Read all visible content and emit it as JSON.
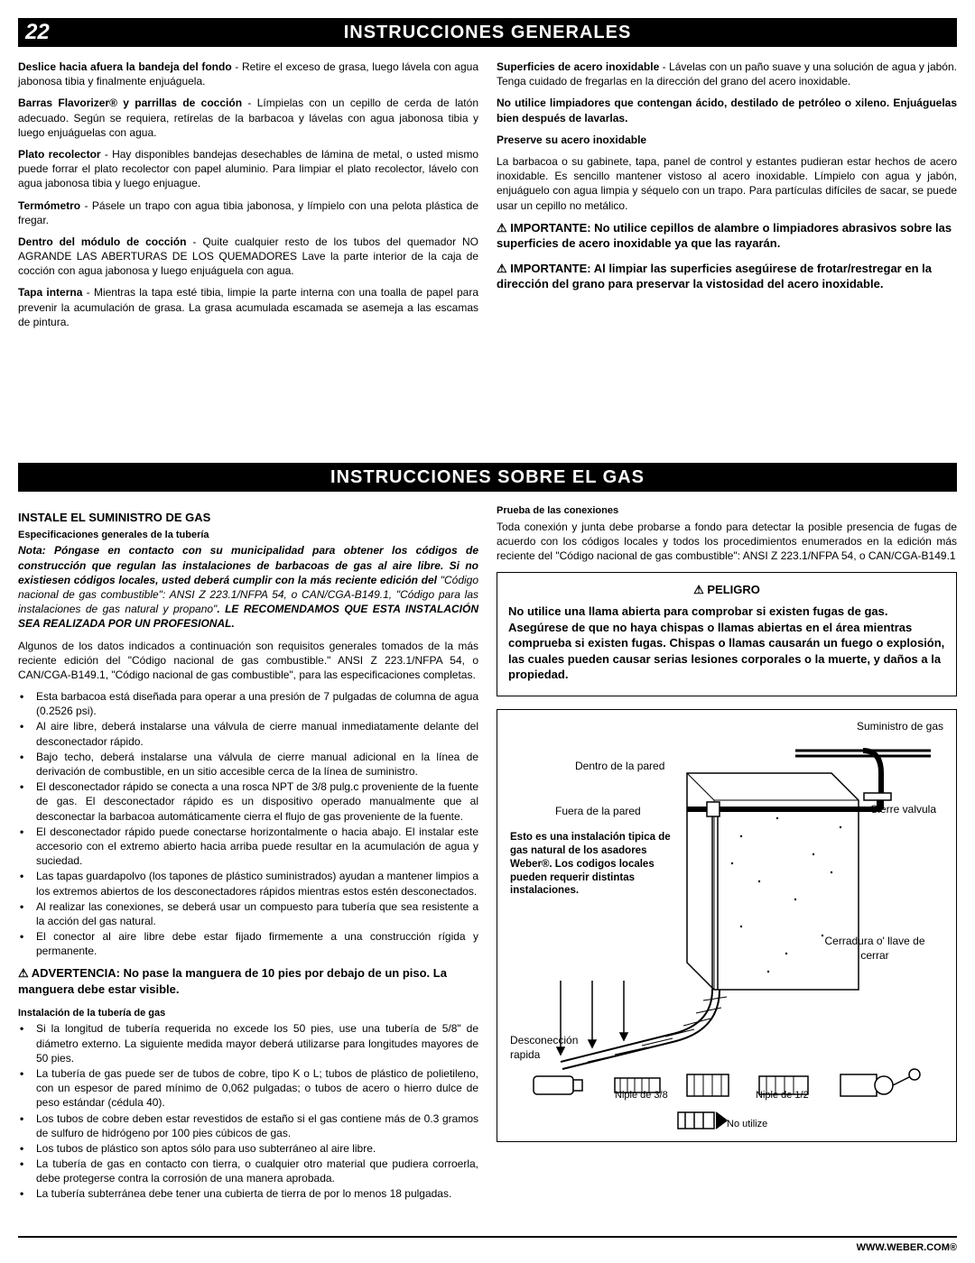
{
  "page_number": "22",
  "header1": "INSTRUCCIONES GENERALES",
  "header2": "INSTRUCCIONES SOBRE EL GAS",
  "left_col_1": [
    {
      "b": "Deslice hacia afuera la bandeja del fondo",
      "t": " - Retire el exceso de grasa, luego lávela con agua jabonosa tibia y finalmente enjuáguela."
    },
    {
      "b": "Barras Flavorizer® y parrillas de cocción",
      "t": " - Límpielas con un cepillo de cerda de latón adecuado. Según se requiera, retírelas de la barbacoa y lávelas con agua jabonosa tibia y luego enjuáguelas con agua."
    },
    {
      "b": "Plato recolector",
      "t": " - Hay disponibles bandejas desechables de lámina de metal, o usted mismo puede forrar el plato recolector con papel aluminio. Para limpiar el plato recolector, lávelo con agua jabonosa tibia y luego enjuague."
    },
    {
      "b": "Termómetro",
      "t": " - Pásele un trapo con agua tibia jabonosa, y límpielo con una pelota plástica de fregar."
    },
    {
      "b": "Dentro del módulo de cocción",
      "t": " - Quite cualquier resto de los tubos del quemador NO AGRANDE LAS ABERTURAS DE LOS QUEMADORES Lave la parte interior de la caja de cocción con agua jabonosa  y luego enjuáguela con agua.",
      "allbold_extra": true
    },
    {
      "b": "Tapa interna",
      "t": " - Mientras la tapa esté tibia, limpie la parte interna con una toalla de papel para prevenir la acumulación de grasa. La grasa acumulada escamada se asemeja a las escamas de pintura."
    }
  ],
  "right_col_1": [
    {
      "b": "Superficies de acero inoxidable",
      "t": " - Lávelas con un paño suave y una solución de agua y jabón. Tenga cuidado de fregarlas en la dirección del grano del acero inoxidable."
    },
    {
      "b": "No utilice limpiadores que contengan ácido, destilado de petróleo o xileno. Enjuáguelas bien después de lavarlas.",
      "t": "",
      "allbold": true
    },
    {
      "b": "Preserve su acero inoxidable",
      "t": "",
      "allbold": true
    },
    {
      "b": "",
      "t": "La barbacoa o su gabinete, tapa, panel de control y estantes pudieran estar hechos de acero inoxidable. Es sencillo mantener vistoso al acero inoxidable. Límpielo con agua y jabón, enjuáguelo con agua limpia y séquelo con un trapo. Para partículas difíciles de sacar, se puede usar un cepillo no metálico."
    }
  ],
  "warnings_1": [
    "⚠ IMPORTANTE: No utilice cepillos de alambre o limpiadores abrasivos sobre las superficies de acero inoxidable ya que las rayarán.",
    "⚠ IMPORTANTE: Al limpiar las superficies asegúirese de frotar/restregar en la dirección del grano para preservar la vistosidad del acero inoxidable."
  ],
  "gas_left": {
    "title": "INSTALE EL SUMINISTRO DE GAS",
    "sub1": "Especificaciones generales de la tubería",
    "note": "Nota: Póngase en contacto con su municipalidad para obtener los códigos de construcción que regulan las instalaciones de barbacoas de gas al aire libre. Si no existiesen códigos locales, usted deberá cumplir con la más reciente edición del",
    "note_tail": " \"Código nacional de gas combustible\": ANSI Z 223.1/NFPA 54, o CAN/CGA-B149.1, \"Código para las instalaciones de gas natural y propano\"",
    "note_rec": ". LE RECOMENDAMOS QUE ESTA INSTALACIÓN SEA REALIZADA POR UN PROFESIONAL.",
    "para2": "Algunos de los datos indicados a continuación son requisitos generales tomados de la más reciente edición del \"Código nacional de gas combustible.\" ANSI Z 223.1/NFPA 54, o CAN/CGA-B149.1, \"Código nacional de gas combustible\", para las especificaciones completas.",
    "bullets1": [
      "Esta barbacoa está diseñada para operar a una presión de 7 pulgadas de columna de agua (0.2526 psi).",
      "Al aire libre, deberá instalarse una válvula de cierre manual inmediatamente delante del desconectador rápido.",
      "Bajo techo, deberá instalarse una válvula de cierre manual adicional en la línea de derivación de combustible, en un sitio accesible cerca de la línea de suministro.",
      "El desconectador rápido se conecta a una rosca NPT de  3/8 pulg.c proveniente de la fuente de gas. El desconectador rápido es un dispositivo operado manualmente que al desconectar la barbacoa automáticamente cierra el flujo de gas proveniente de la fuente.",
      "El desconectador rápido puede conectarse horizontalmente o hacia abajo. El instalar este accesorio con el extremo abierto hacia arriba puede resultar en la acumulación de agua y suciedad.",
      "Las tapas guardapolvo (los tapones de plástico suministrados) ayudan a mantener limpios a los extremos abiertos de los desconectadores rápidos mientras estos estén desconectados.",
      "Al realizar las conexiones, se deberá usar un compuesto para tubería que sea resistente a la acción del gas natural.",
      "El conector al aire libre debe estar fijado firmemente a una construcción rígida y permanente."
    ],
    "warn": "⚠ ADVERTENCIA: No pase la manguera de 10 pies por debajo de un piso. La manguera debe estar visible.",
    "sub2": "Instalación de la tubería de gas",
    "bullets2": [
      "Si la longitud de tubería requerida no excede los 50 pies, use una tubería de 5/8\" de diámetro externo.  La siguiente medida mayor deberá utilizarse para longitudes mayores de 50 pies.",
      "La tubería de gas puede ser de tubos de cobre, tipo K o L; tubos de plástico de polietileno, con un espesor de pared mínimo de 0,062 pulgadas; o tubos de acero o hierro dulce de peso estándar (cédula 40).",
      "Los tubos de cobre deben estar revestidos de estaño si el gas contiene más de 0.3 gramos de sulfuro de hidrógeno por 100 pies cúbicos de gas.",
      "Los tubos de plástico son aptos sólo para uso subterráneo al aire libre.",
      "La tubería de gas en contacto con tierra, o cualquier otro material que pudiera corroerla, debe protegerse contra la corrosión de una manera aprobada.",
      "La tubería subterránea debe tener una cubierta de tierra de por lo menos 18 pulgadas."
    ]
  },
  "gas_right": {
    "sub": "Prueba de las conexiones",
    "para": "Toda conexión y junta debe probarse a fondo para detectar la posible presencia de fugas de acuerdo con los códigos locales y todos los procedimientos enumerados en la edición más reciente del \"Código nacional de gas combustible\": ANSI Z 223.1/NFPA 54, o CAN/CGA-B149.1",
    "danger_title": "⚠ PELIGRO",
    "danger_body": "No utilice una llama abierta para comprobar si existen fugas de gas. Asegúrese de que no haya chispas o llamas abiertas en el área mientras comprueba si existen fugas. Chispas o llamas causarán un fuego o explosión, las cuales pueden causar serias lesiones corporales o la muerte, y daños a la propiedad."
  },
  "diagram": {
    "supply": "Suministro de gas",
    "inside": "Dentro de la pared",
    "outside": "Fuera de la pared",
    "valve_close": "Cierre valvula",
    "note": "Esto es una instalación tipica de gas natural de los asadores Weber®. Los codigos locales pueden requerir distintas instalaciones.",
    "lock": "Cerradura o' llave de cerrar",
    "disconnect": "Desconección rapida",
    "nip38": "Niple de 3/8",
    "nip12": "Niple de 1/2",
    "noutil": "No utilize"
  },
  "footer": "WWW.WEBER.COM®"
}
